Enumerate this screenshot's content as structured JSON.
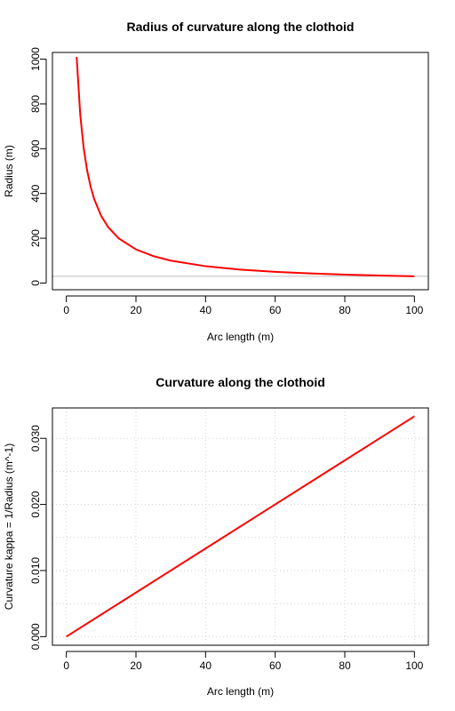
{
  "chart_data": [
    {
      "type": "line",
      "title": "Radius of curvature along the clothoid",
      "xlabel": "Arc length (m)",
      "ylabel": "Radius (m)",
      "xlim": [
        -4,
        104
      ],
      "ylim": [
        -30,
        1030
      ],
      "xticks": [
        0,
        20,
        40,
        60,
        80,
        100
      ],
      "yticks": [
        0,
        200,
        400,
        600,
        800,
        1000
      ],
      "grid": false,
      "hline": 30,
      "hline_color": "#bebebe",
      "series": [
        {
          "color": "#ff0000",
          "x": [
            2.97,
            3,
            4,
            5,
            6,
            7,
            8,
            10,
            12,
            15,
            20,
            25,
            30,
            40,
            50,
            60,
            70,
            80,
            90,
            100
          ],
          "y": [
            1010,
            1000,
            750,
            600,
            500,
            428.6,
            375,
            300,
            250,
            200,
            150,
            120,
            100,
            75,
            60,
            50,
            42.9,
            37.5,
            33.3,
            30
          ]
        }
      ]
    },
    {
      "type": "line",
      "title": "Curvature along the clothoid",
      "xlabel": "Arc length (m)",
      "ylabel": "Curvature kappa = 1/Radius (m^-1)",
      "xlim": [
        -4,
        104
      ],
      "ylim": [
        -0.0013,
        0.0346
      ],
      "xticks": [
        0,
        20,
        40,
        60,
        80,
        100
      ],
      "yticks": [
        0,
        0.01,
        0.02,
        0.03
      ],
      "ytick_labels": [
        "0.000",
        "0.010",
        "0.020",
        "0.030"
      ],
      "xgrid": [
        0,
        20,
        40,
        60,
        80,
        100
      ],
      "ygrid": [
        0,
        0.005,
        0.01,
        0.015,
        0.02,
        0.025,
        0.03
      ],
      "grid": true,
      "series": [
        {
          "color": "#ff0000",
          "x": [
            0,
            15,
            30,
            45,
            60,
            75,
            90,
            100
          ],
          "y": [
            0,
            0.005,
            0.01,
            0.015,
            0.02,
            0.025,
            0.03,
            0.03333
          ]
        }
      ]
    }
  ]
}
